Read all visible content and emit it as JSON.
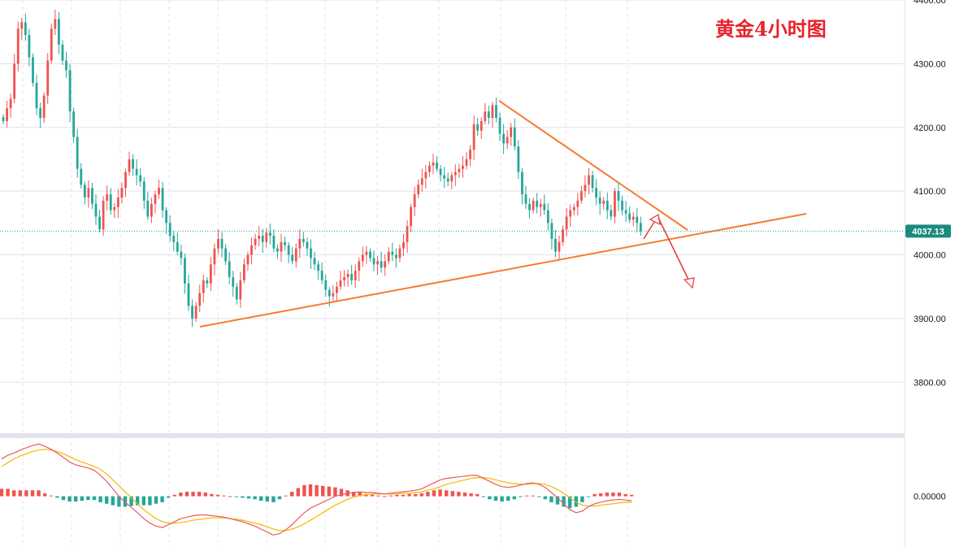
{
  "colors": {
    "up": "#ef5350",
    "down": "#26a69a",
    "trendline": "#f57c30",
    "arrow": "#e53935",
    "macd_line": "#e95c58",
    "signal_line": "#f5b700",
    "grid": "#e0e3eb",
    "price_line": "#26a69a",
    "price_label_bg": "#1b8a80",
    "title": "#e8212b"
  },
  "chart_data": [
    {
      "type": "candlestick",
      "title": "黄金4小时图",
      "ylim": [
        3720,
        4400
      ],
      "yticks": [
        3800,
        3900,
        4000,
        4100,
        4200,
        4300,
        4400
      ],
      "ytick_labels": [
        "3800.00",
        "3900.00",
        "4000.00",
        "4100.00",
        "4200.00",
        "4300.00",
        "4400.00"
      ],
      "grid": true,
      "current_price": 4037.13,
      "current_price_label": "4037.13",
      "close_series": [
        4210,
        4230,
        4245,
        4300,
        4355,
        4365,
        4345,
        4310,
        4270,
        4230,
        4215,
        4250,
        4305,
        4355,
        4370,
        4330,
        4305,
        4290,
        4225,
        4185,
        4135,
        4110,
        4090,
        4105,
        4080,
        4060,
        4040,
        4085,
        4095,
        4070,
        4075,
        4090,
        4105,
        4130,
        4150,
        4135,
        4125,
        4115,
        4085,
        4060,
        4080,
        4095,
        4105,
        4070,
        4050,
        4030,
        4020,
        4005,
        3995,
        3955,
        3920,
        3900,
        3920,
        3940,
        3960,
        3955,
        3985,
        4010,
        4025,
        4010,
        3990,
        3965,
        3950,
        3930,
        3960,
        3985,
        4000,
        4015,
        4025,
        4030,
        4020,
        4035,
        4030,
        4010,
        4005,
        4020,
        4015,
        4000,
        3990,
        4010,
        4025,
        4020,
        4010,
        3995,
        3985,
        3975,
        3960,
        3945,
        3935,
        3940,
        3950,
        3960,
        3965,
        3970,
        3960,
        3975,
        3990,
        4000,
        4005,
        3995,
        3985,
        3990,
        3980,
        3990,
        4005,
        4000,
        3995,
        4010,
        4020,
        4045,
        4075,
        4095,
        4110,
        4120,
        4130,
        4140,
        4145,
        4135,
        4125,
        4120,
        4115,
        4125,
        4130,
        4135,
        4140,
        4150,
        4165,
        4205,
        4195,
        4210,
        4225,
        4215,
        4235,
        4215,
        4190,
        4175,
        4185,
        4200,
        4170,
        4130,
        4095,
        4080,
        4070,
        4085,
        4075,
        4080,
        4070,
        4050,
        4025,
        4005,
        4020,
        4040,
        4060,
        4070,
        4075,
        4085,
        4100,
        4110,
        4125,
        4105,
        4090,
        4080,
        4085,
        4070,
        4060,
        4100,
        4085,
        4070,
        4065,
        4055,
        4060,
        4050,
        4037
      ]
    },
    {
      "type": "bar+line",
      "title": "MACD",
      "ylim": [
        -68,
        78
      ],
      "yticks": [
        0
      ],
      "ytick_labels": [
        "0.00000"
      ],
      "macd_line": [
        50,
        55,
        58,
        62,
        65,
        68,
        70,
        67,
        63,
        58,
        52,
        46,
        42,
        40,
        38,
        35,
        28,
        20,
        10,
        0,
        -8,
        -15,
        -22,
        -30,
        -36,
        -40,
        -42,
        -38,
        -34,
        -30,
        -28,
        -26,
        -25,
        -25,
        -26,
        -27,
        -28,
        -30,
        -32,
        -34,
        -37,
        -40,
        -44,
        -48,
        -52,
        -50,
        -45,
        -38,
        -30,
        -22,
        -16,
        -12,
        -8,
        -4,
        0,
        2,
        4,
        5,
        6,
        5,
        5,
        4,
        3,
        4,
        5,
        6,
        7,
        8,
        10,
        14,
        18,
        22,
        24,
        25,
        26,
        27,
        28,
        28,
        24,
        20,
        16,
        13,
        12,
        13,
        15,
        17,
        18,
        16,
        12,
        5,
        -2,
        -10,
        -18,
        -22,
        -20,
        -14,
        -10,
        -8,
        -6,
        -5,
        -4,
        -5,
        -6
      ],
      "signal_line": [
        40,
        45,
        50,
        54,
        57,
        60,
        62,
        63,
        62,
        60,
        57,
        53,
        49,
        46,
        43,
        40,
        36,
        30,
        22,
        14,
        6,
        -2,
        -10,
        -18,
        -24,
        -30,
        -34,
        -36,
        -36,
        -35,
        -34,
        -32,
        -31,
        -30,
        -29,
        -29,
        -29,
        -30,
        -31,
        -32,
        -34,
        -36,
        -38,
        -41,
        -44,
        -46,
        -46,
        -44,
        -41,
        -37,
        -32,
        -27,
        -22,
        -17,
        -12,
        -8,
        -4,
        -1,
        1,
        2,
        3,
        3,
        3,
        3,
        3,
        4,
        4,
        5,
        6,
        8,
        10,
        13,
        16,
        18,
        20,
        22,
        24,
        25,
        25,
        24,
        22,
        20,
        18,
        17,
        16,
        16,
        17,
        17,
        16,
        13,
        9,
        4,
        -2,
        -8,
        -12,
        -13,
        -13,
        -12,
        -11,
        -10,
        -9,
        -8,
        -8
      ],
      "histogram": [
        10,
        10,
        8,
        8,
        8,
        8,
        8,
        4,
        1,
        -2,
        -5,
        -7,
        -7,
        -6,
        -5,
        -5,
        -8,
        -10,
        -12,
        -14,
        -14,
        -13,
        -12,
        -12,
        -12,
        -10,
        -8,
        -2,
        2,
        5,
        6,
        6,
        6,
        5,
        3,
        2,
        1,
        0,
        -1,
        -2,
        -3,
        -4,
        -6,
        -7,
        -8,
        -4,
        1,
        6,
        11,
        15,
        16,
        15,
        14,
        13,
        12,
        10,
        8,
        6,
        5,
        3,
        2,
        1,
        0,
        1,
        2,
        2,
        3,
        3,
        4,
        6,
        8,
        9,
        8,
        7,
        6,
        5,
        4,
        3,
        -1,
        -4,
        -6,
        -7,
        -6,
        -4,
        -1,
        1,
        1,
        -1,
        -4,
        -8,
        -11,
        -14,
        -16,
        -14,
        -8,
        -1,
        3,
        4,
        5,
        5,
        5,
        3,
        2
      ]
    }
  ]
}
